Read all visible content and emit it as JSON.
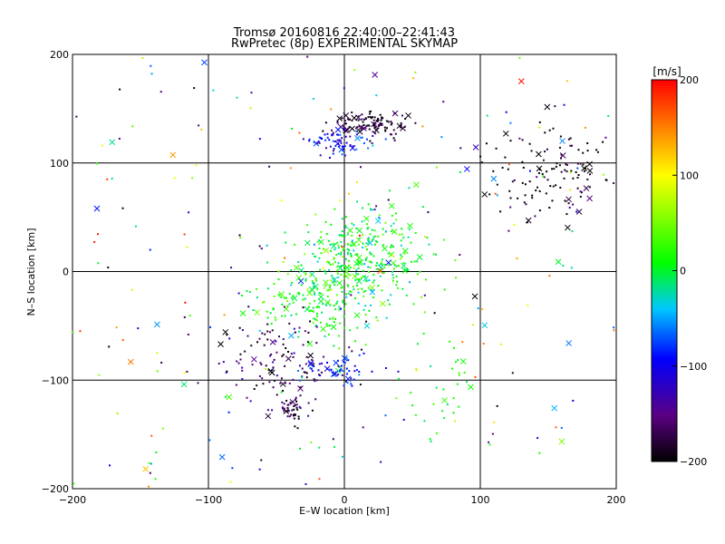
{
  "chart_data": {
    "type": "scatter",
    "title": "Tromsø 20160816 22:40:00–22:41:43",
    "subtitle": "RwPretec (8p) EXPERIMENTAL SKYMAP",
    "xlabel": "E–W location [km]",
    "ylabel": "N–S location [km]",
    "xlim": [
      -200,
      200
    ],
    "ylim": [
      -200,
      200
    ],
    "xticks": [
      "−200",
      "−100",
      "0",
      "100",
      "200"
    ],
    "yticks": [
      "−200",
      "−100",
      "0",
      "100",
      "200"
    ],
    "grid": true,
    "colorbar": {
      "label": "[m/s]",
      "range": [
        -200,
        200
      ],
      "ticks": [
        "−200",
        "−100",
        "0",
        "100",
        "200"
      ],
      "colormap": "rainbow (black→purple→blue→cyan→green→yellow→red)"
    },
    "clusters": [
      {
        "x": 20,
        "y": 135,
        "sx": 14,
        "sy": 6,
        "v": -185,
        "n": 120
      },
      {
        "x": -5,
        "y": 118,
        "sx": 12,
        "sy": 6,
        "v": -100,
        "n": 70
      },
      {
        "x": 155,
        "y": 90,
        "sx": 25,
        "sy": 22,
        "v": -198,
        "n": 130
      },
      {
        "x": 15,
        "y": 15,
        "sx": 22,
        "sy": 22,
        "v": 10,
        "n": 320
      },
      {
        "x": -20,
        "y": -30,
        "sx": 22,
        "sy": 20,
        "v": 5,
        "n": 180
      },
      {
        "x": -50,
        "y": -80,
        "sx": 25,
        "sy": 20,
        "v": -170,
        "n": 130
      },
      {
        "x": -40,
        "y": -127,
        "sx": 5,
        "sy": 6,
        "v": -175,
        "n": 40
      },
      {
        "x": -5,
        "y": -90,
        "sx": 15,
        "sy": 8,
        "v": -90,
        "n": 50
      },
      {
        "x": 70,
        "y": -110,
        "sx": 15,
        "sy": 20,
        "v": 10,
        "n": 35
      },
      {
        "x": 0,
        "y": -80,
        "sx": 120,
        "sy": 120,
        "v": 0,
        "n": 220,
        "vspread": 200
      }
    ]
  }
}
